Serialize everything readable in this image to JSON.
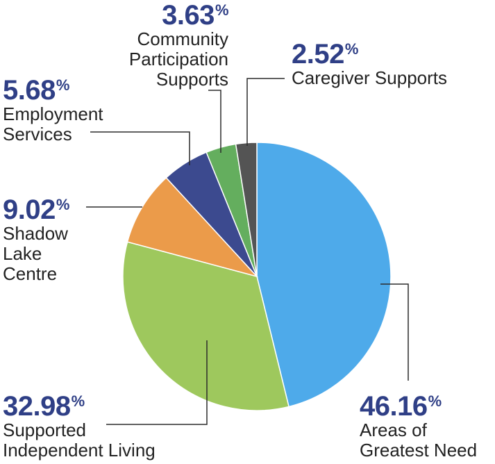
{
  "chart_data": {
    "type": "pie",
    "percent_symbol": "%",
    "slices": [
      {
        "name": "Areas of Greatest Need",
        "value": 46.16,
        "value_text": "46.16",
        "label_lines": [
          "Areas of",
          "Greatest Need"
        ],
        "color": "#4eaaea"
      },
      {
        "name": "Supported Independent Living",
        "value": 32.98,
        "value_text": "32.98",
        "label_lines": [
          "Supported",
          "Independent Living"
        ],
        "color": "#9ec85d"
      },
      {
        "name": "Shadow Lake Centre",
        "value": 9.02,
        "value_text": "9.02",
        "label_lines": [
          "Shadow",
          "Lake",
          "Centre"
        ],
        "color": "#eb9b4a"
      },
      {
        "name": "Employment Services",
        "value": 5.68,
        "value_text": "5.68",
        "label_lines": [
          "Employment",
          "Services"
        ],
        "color": "#3c4a8f"
      },
      {
        "name": "Community Participation Supports",
        "value": 3.63,
        "value_text": "3.63",
        "label_lines": [
          "Community",
          "Participation",
          "Supports"
        ],
        "color": "#64ae5e"
      },
      {
        "name": "Caregiver Supports",
        "value": 2.52,
        "value_text": "2.52",
        "label_lines": [
          "Caregiver Supports"
        ],
        "color": "#545454"
      }
    ]
  }
}
